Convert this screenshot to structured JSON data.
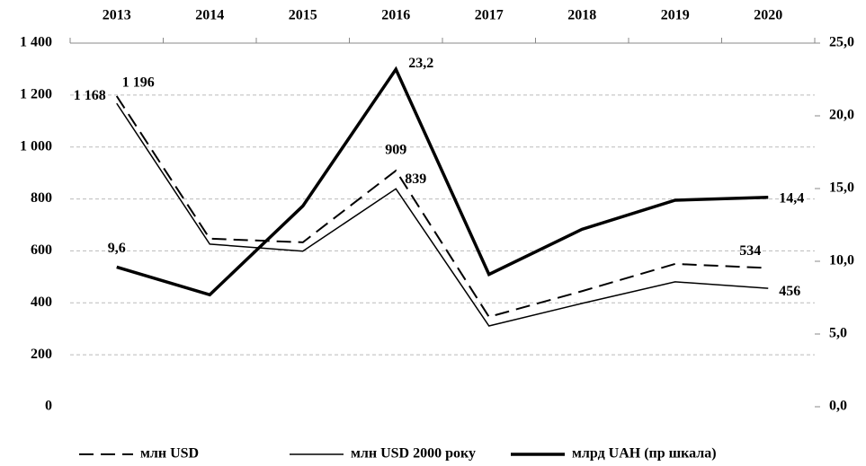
{
  "chart_data": {
    "type": "line",
    "categories": [
      "2013",
      "2014",
      "2015",
      "2016",
      "2017",
      "2018",
      "2019",
      "2020"
    ],
    "series": [
      {
        "name": "млн USD",
        "color": "#000000",
        "dash": "dashed",
        "width": 2,
        "values": [
          1196,
          647,
          633,
          909,
          346,
          445,
          550,
          534
        ],
        "value_labels": [
          "1 196",
          null,
          null,
          "909",
          null,
          null,
          null,
          "534"
        ]
      },
      {
        "name": "млн USD 2000 року",
        "color": "#000000",
        "dash": "solid",
        "width": 1.5,
        "values": [
          1168,
          626,
          599,
          839,
          311,
          398,
          481,
          456
        ],
        "value_labels": [
          "1 168",
          null,
          null,
          "839",
          null,
          null,
          null,
          "456"
        ]
      },
      {
        "name": "млрд UAH (пр шкала)",
        "color": "#000000",
        "dash": "solid",
        "width": 3.5,
        "axis": "y2",
        "values": [
          9.6,
          7.7,
          13.8,
          23.2,
          9.1,
          12.2,
          14.2,
          14.4
        ],
        "value_labels": [
          "9,6",
          null,
          null,
          "23,2",
          null,
          null,
          null,
          "14,4"
        ]
      }
    ],
    "ylim": [
      0,
      1400
    ],
    "yticks": [
      0,
      200,
      400,
      600,
      800,
      {
        "value": 1000,
        "label": "1 000"
      },
      {
        "value": 1200,
        "label": "1 200"
      },
      {
        "value": 1400,
        "label": "1 400"
      }
    ],
    "y2lim": [
      0,
      25
    ],
    "y2ticks": [
      {
        "value": 0,
        "label": "0,0"
      },
      {
        "value": 5,
        "label": "5,0"
      },
      {
        "value": 10,
        "label": "10,0"
      },
      {
        "value": 15,
        "label": "15,0"
      },
      {
        "value": 20,
        "label": "20,0"
      },
      {
        "value": 25,
        "label": "25,0"
      }
    ],
    "grid": true,
    "legend": "bottom"
  }
}
